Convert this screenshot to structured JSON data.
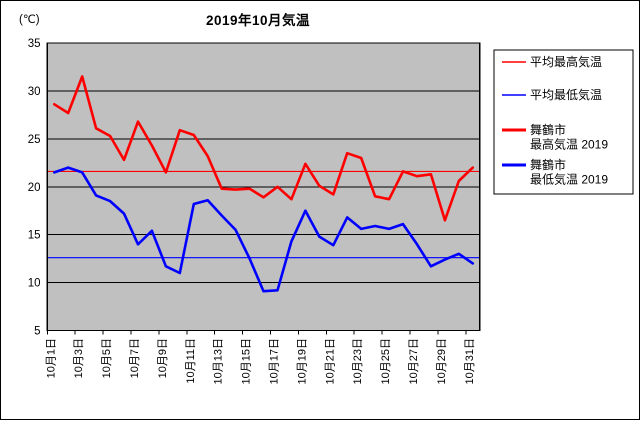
{
  "chart_data": {
    "type": "line",
    "title": "2019年10月気温",
    "unit_label": "(℃)",
    "ylim": [
      5,
      35
    ],
    "yticks": [
      35,
      30,
      25,
      20,
      15,
      10,
      5
    ],
    "grid": true,
    "plot_bg": "#c0c0c0",
    "axis_color": "#000000",
    "legend_position": "right",
    "n_days": 31,
    "xtick_labels": [
      "10月1日",
      "10月3日",
      "10月5日",
      "10月7日",
      "10月9日",
      "10月11日",
      "10月13日",
      "10月15日",
      "10月17日",
      "10月19日",
      "10月21日",
      "10月23日",
      "10月25日",
      "10月27日",
      "10月29日",
      "10月31日"
    ],
    "series": [
      {
        "name": "平均最高気温",
        "kind": "hline",
        "value": 21.6,
        "color": "#ff0000",
        "width": 1.2,
        "legend_lines": [
          "平均最高気温"
        ]
      },
      {
        "name": "平均最低気温",
        "kind": "hline",
        "value": 12.6,
        "color": "#0000ff",
        "width": 1.2,
        "legend_lines": [
          "平均最低気温"
        ]
      },
      {
        "name": "舞鶴市 最高気温 2019",
        "kind": "line",
        "color": "#ff0000",
        "width": 2.6,
        "legend_lines": [
          "舞鶴市",
          "最高気温 2019"
        ],
        "values": [
          28.6,
          27.7,
          31.5,
          26.1,
          25.3,
          22.8,
          26.8,
          24.3,
          21.5,
          25.9,
          25.4,
          23.2,
          19.8,
          19.7,
          19.8,
          18.9,
          20.0,
          18.7,
          22.4,
          20.1,
          19.2,
          23.5,
          23.0,
          19.0,
          18.7,
          21.6,
          21.1,
          21.3,
          16.5,
          20.6,
          22.0
        ]
      },
      {
        "name": "舞鶴市 最低気温 2019",
        "kind": "line",
        "color": "#0000ff",
        "width": 2.6,
        "legend_lines": [
          "舞鶴市",
          "最低気温 2019"
        ],
        "values": [
          21.5,
          22.0,
          21.5,
          19.1,
          18.5,
          17.2,
          14.0,
          15.4,
          11.7,
          11.0,
          18.2,
          18.6,
          17.0,
          15.5,
          12.5,
          9.1,
          9.2,
          14.3,
          17.5,
          14.8,
          13.9,
          16.8,
          15.6,
          15.9,
          15.6,
          16.1,
          14.0,
          11.7,
          12.4,
          13.0,
          12.0
        ]
      }
    ]
  }
}
